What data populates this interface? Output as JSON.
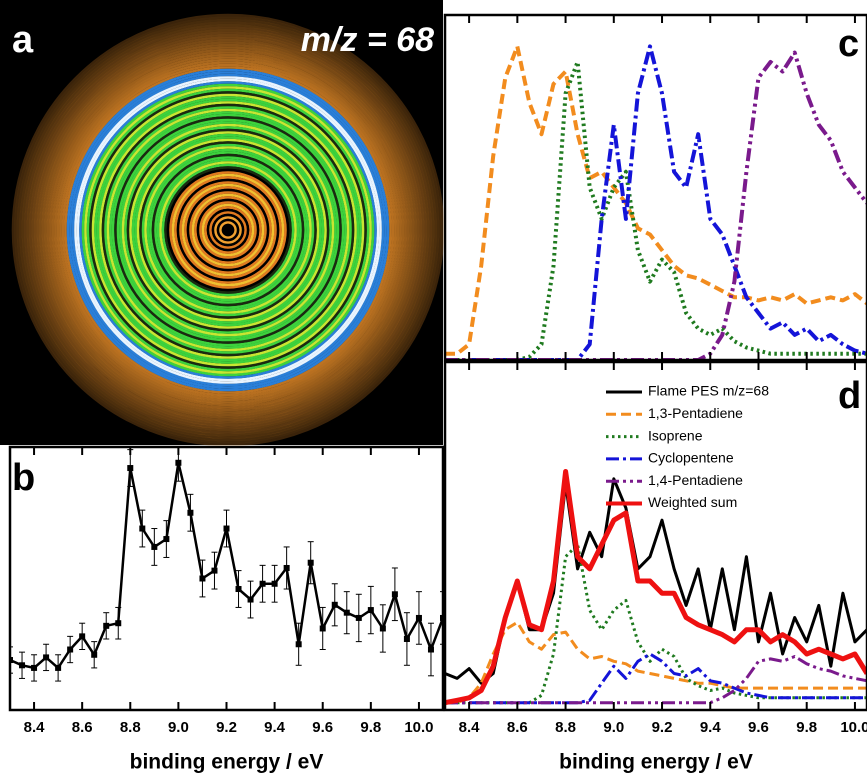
{
  "chart_data": [
    {
      "type": "image",
      "label": "a",
      "title": "m/z = 68"
    },
    {
      "type": "line",
      "label": "b",
      "xlabel": "binding energy / eV",
      "x": [
        8.3,
        8.35,
        8.4,
        8.45,
        8.5,
        8.55,
        8.6,
        8.65,
        8.7,
        8.75,
        8.8,
        8.85,
        8.9,
        8.95,
        9.0,
        9.05,
        9.1,
        9.15,
        9.2,
        9.25,
        9.3,
        9.35,
        9.4,
        9.45,
        9.5,
        9.55,
        9.6,
        9.65,
        9.7,
        9.75,
        9.8,
        9.85,
        9.9,
        9.95,
        10.0,
        10.05,
        10.1
      ],
      "series": [
        {
          "color": "#000000",
          "linestyle": "solid",
          "marker": true,
          "values": [
            0.19,
            0.17,
            0.16,
            0.2,
            0.16,
            0.23,
            0.28,
            0.21,
            0.32,
            0.33,
            0.92,
            0.69,
            0.62,
            0.65,
            0.94,
            0.75,
            0.5,
            0.53,
            0.69,
            0.46,
            0.42,
            0.48,
            0.48,
            0.54,
            0.25,
            0.56,
            0.31,
            0.4,
            0.37,
            0.35,
            0.38,
            0.31,
            0.44,
            0.27,
            0.35,
            0.23,
            0.35
          ],
          "errors": [
            0.05,
            0.05,
            0.05,
            0.05,
            0.05,
            0.05,
            0.05,
            0.05,
            0.05,
            0.06,
            0.07,
            0.07,
            0.07,
            0.07,
            0.07,
            0.07,
            0.07,
            0.07,
            0.07,
            0.07,
            0.07,
            0.07,
            0.07,
            0.08,
            0.08,
            0.08,
            0.08,
            0.08,
            0.08,
            0.09,
            0.09,
            0.09,
            0.1,
            0.1,
            0.1,
            0.1,
            0.1
          ]
        }
      ],
      "xlim": [
        8.3,
        10.1
      ],
      "ylim": [
        0,
        1
      ],
      "xticks": [
        8.4,
        8.6,
        8.8,
        {
          "value": 9,
          "label": "9.0"
        },
        9.2,
        9.4,
        9.6,
        9.8,
        {
          "value": 10,
          "label": "10.0"
        }
      ]
    },
    {
      "type": "line",
      "label": "c",
      "x": [
        8.3,
        8.35,
        8.4,
        8.45,
        8.5,
        8.55,
        8.6,
        8.65,
        8.7,
        8.75,
        8.8,
        8.85,
        8.9,
        8.95,
        9.0,
        9.05,
        9.1,
        9.15,
        9.2,
        9.25,
        9.3,
        9.35,
        9.4,
        9.45,
        9.5,
        9.55,
        9.6,
        9.65,
        9.7,
        9.75,
        9.8,
        9.85,
        9.9,
        9.95,
        10.0,
        10.05
      ],
      "series": [
        {
          "color": "#f28c1e",
          "linestyle": "dashed",
          "values": [
            0.02,
            0.02,
            0.05,
            0.3,
            0.65,
            0.9,
            1.0,
            0.82,
            0.72,
            0.88,
            0.92,
            0.72,
            0.58,
            0.6,
            0.55,
            0.5,
            0.42,
            0.4,
            0.35,
            0.3,
            0.27,
            0.26,
            0.24,
            0.22,
            0.2,
            0.2,
            0.19,
            0.2,
            0.19,
            0.21,
            0.18,
            0.19,
            0.2,
            0.19,
            0.21,
            0.18
          ]
        },
        {
          "color": "#1f7a1f",
          "linestyle": "dotted",
          "values": [
            0,
            0,
            0,
            0,
            0,
            0,
            0,
            0.01,
            0.05,
            0.3,
            0.85,
            0.95,
            0.55,
            0.45,
            0.55,
            0.6,
            0.35,
            0.25,
            0.32,
            0.28,
            0.15,
            0.1,
            0.08,
            0.1,
            0.06,
            0.04,
            0.03,
            0.02,
            0.02,
            0.02,
            0.02,
            0.02,
            0.02,
            0.02,
            0.02,
            0.02
          ]
        },
        {
          "color": "#1414d8",
          "linestyle": "dashdot",
          "values": [
            0,
            0,
            0,
            0,
            0,
            0,
            0,
            0,
            0,
            0,
            0,
            0,
            0.05,
            0.45,
            0.75,
            0.45,
            0.85,
            1.0,
            0.85,
            0.6,
            0.55,
            0.72,
            0.45,
            0.4,
            0.3,
            0.2,
            0.15,
            0.1,
            0.12,
            0.08,
            0.1,
            0.06,
            0.08,
            0.05,
            0.03,
            0.02
          ]
        },
        {
          "color": "#7a1a8c",
          "linestyle": "dashdotdot",
          "values": [
            0,
            0,
            0,
            0,
            0,
            0,
            0,
            0,
            0,
            0,
            0,
            0,
            0,
            0,
            0,
            0,
            0,
            0,
            0,
            0,
            0,
            0,
            0.02,
            0.08,
            0.25,
            0.6,
            0.9,
            0.95,
            0.92,
            0.98,
            0.85,
            0.75,
            0.7,
            0.6,
            0.55,
            0.5
          ]
        }
      ],
      "xlim": [
        8.3,
        10.05
      ],
      "ylim": [
        0,
        1.1
      ],
      "xticks": [
        8.4,
        8.6,
        8.8,
        9,
        9.2,
        9.4,
        9.6,
        9.8,
        10
      ]
    },
    {
      "type": "line",
      "label": "d",
      "xlabel": "binding energy / eV",
      "x": [
        8.3,
        8.35,
        8.4,
        8.45,
        8.5,
        8.55,
        8.6,
        8.65,
        8.7,
        8.75,
        8.8,
        8.85,
        8.9,
        8.95,
        9.0,
        9.05,
        9.1,
        9.15,
        9.2,
        9.25,
        9.3,
        9.35,
        9.4,
        9.45,
        9.5,
        9.55,
        9.6,
        9.65,
        9.7,
        9.75,
        9.8,
        9.85,
        9.9,
        9.95,
        10.0,
        10.05
      ],
      "series": [
        {
          "name": "Flame PES m/z=68",
          "color": "#000000",
          "linestyle": "solid",
          "values": [
            0.12,
            0.1,
            0.14,
            0.08,
            0.12,
            0.35,
            0.5,
            0.3,
            0.3,
            0.45,
            0.9,
            0.55,
            0.7,
            0.6,
            0.92,
            0.8,
            0.55,
            0.6,
            0.75,
            0.55,
            0.4,
            0.55,
            0.3,
            0.55,
            0.3,
            0.6,
            0.25,
            0.45,
            0.2,
            0.35,
            0.25,
            0.4,
            0.15,
            0.45,
            0.25,
            0.3
          ]
        },
        {
          "name": "1,3-Pentadiene",
          "color": "#f28c1e",
          "linestyle": "dashed",
          "values": [
            0,
            0,
            0.02,
            0.08,
            0.2,
            0.3,
            0.33,
            0.25,
            0.22,
            0.28,
            0.29,
            0.22,
            0.18,
            0.19,
            0.17,
            0.16,
            0.13,
            0.12,
            0.11,
            0.1,
            0.09,
            0.08,
            0.08,
            0.07,
            0.06,
            0.06,
            0.06,
            0.06,
            0.06,
            0.06,
            0.06,
            0.06,
            0.06,
            0.06,
            0.06,
            0.06
          ]
        },
        {
          "name": "Isoprene",
          "color": "#1f7a1f",
          "linestyle": "dotted",
          "values": [
            0,
            0,
            0,
            0,
            0,
            0,
            0,
            0,
            0.03,
            0.2,
            0.6,
            0.65,
            0.38,
            0.3,
            0.38,
            0.42,
            0.25,
            0.17,
            0.22,
            0.19,
            0.1,
            0.07,
            0.05,
            0.06,
            0.04,
            0.03,
            0.02,
            0.02,
            0.02,
            0.02,
            0.02,
            0.02,
            0.02,
            0.02,
            0.02,
            0.02
          ]
        },
        {
          "name": "Cyclopentene",
          "color": "#1414d8",
          "linestyle": "dashdot",
          "values": [
            0,
            0,
            0,
            0,
            0,
            0,
            0,
            0,
            0,
            0,
            0,
            0,
            0.01,
            0.08,
            0.15,
            0.1,
            0.17,
            0.2,
            0.17,
            0.12,
            0.11,
            0.14,
            0.09,
            0.08,
            0.06,
            0.04,
            0.03,
            0.02,
            0.02,
            0.02,
            0.02,
            0.02,
            0.02,
            0.02,
            0.02,
            0.02
          ]
        },
        {
          "name": "1,4-Pentadiene",
          "color": "#7a1a8c",
          "linestyle": "dashdotdot",
          "values": [
            0,
            0,
            0,
            0,
            0,
            0,
            0,
            0,
            0,
            0,
            0,
            0,
            0,
            0,
            0,
            0,
            0,
            0,
            0,
            0,
            0,
            0,
            0,
            0.02,
            0.05,
            0.1,
            0.17,
            0.18,
            0.17,
            0.19,
            0.16,
            0.14,
            0.13,
            0.11,
            0.1,
            0.09
          ]
        },
        {
          "name": "Weighted sum",
          "color": "#ee1111",
          "linestyle": "solid",
          "values": [
            0,
            0.01,
            0.02,
            0.05,
            0.15,
            0.35,
            0.5,
            0.32,
            0.3,
            0.5,
            0.95,
            0.6,
            0.55,
            0.65,
            0.75,
            0.78,
            0.5,
            0.5,
            0.45,
            0.45,
            0.35,
            0.32,
            0.3,
            0.28,
            0.25,
            0.3,
            0.3,
            0.25,
            0.28,
            0.25,
            0.2,
            0.22,
            0.2,
            0.18,
            0.2,
            0.12
          ]
        }
      ],
      "xlim": [
        8.3,
        10.05
      ],
      "ylim": [
        -0.03,
        1.4
      ],
      "xticks": [
        8.4,
        8.6,
        8.8,
        {
          "value": 9,
          "label": "9.0"
        },
        9.2,
        9.4,
        9.6,
        9.8,
        {
          "value": 10,
          "label": "10.0"
        }
      ]
    }
  ]
}
